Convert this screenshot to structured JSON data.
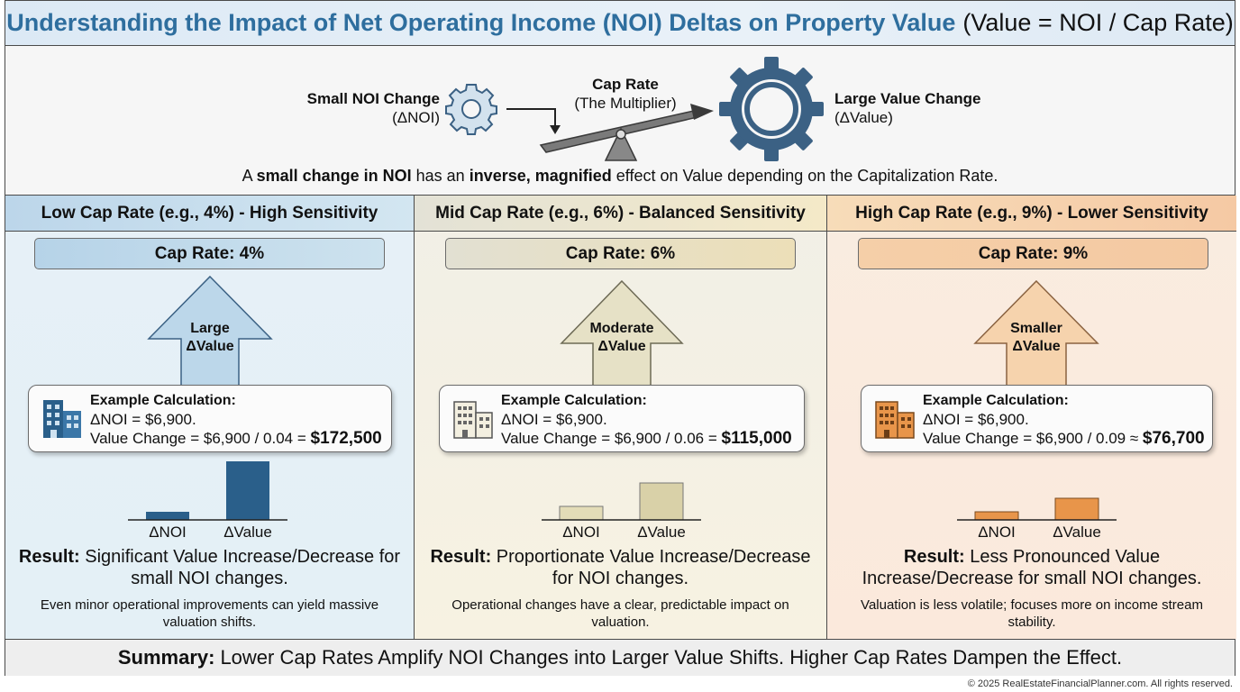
{
  "title": {
    "main": "Understanding the Impact of Net Operating Income (NOI) Deltas on Property Value",
    "formula": "(Value = NOI / Cap Rate)"
  },
  "concept": {
    "small_label_bold": "Small NOI Change",
    "small_label_sub": "(ΔNOI)",
    "cap_label_bold": "Cap Rate",
    "cap_label_sub": "(The Multiplier)",
    "large_label_bold": "Large Value Change",
    "large_label_sub": "(ΔValue)",
    "sentence_pre": "A ",
    "sentence_b1": "small change in NOI",
    "sentence_mid": " has an ",
    "sentence_b2": "inverse, magnified",
    "sentence_post": " effect on Value depending on the Capitalization Rate."
  },
  "columns": [
    {
      "header": "Low Cap Rate (e.g., 4%) - High Sensitivity",
      "cap_pill": "Cap Rate: 4%",
      "arrow_line1": "Large",
      "arrow_line2": "ΔValue",
      "calc_title": "Example Calculation:",
      "calc_noi": "ΔNOI = $6,900.",
      "calc_value_prefix": "Value Change = $6,900 / 0.04 = ",
      "calc_value_result": "$172,500",
      "bar_noi_label": "ΔNOI",
      "bar_value_label": "ΔValue",
      "result_bold": "Result:",
      "result_text": " Significant Value Increase/Decrease for small NOI changes.",
      "note": "Even minor operational improvements can yield massive valuation shifts.",
      "color": "#2a5f8a"
    },
    {
      "header": "Mid Cap Rate (e.g., 6%) - Balanced Sensitivity",
      "cap_pill": "Cap Rate: 6%",
      "arrow_line1": "Moderate",
      "arrow_line2": "ΔValue",
      "calc_title": "Example Calculation:",
      "calc_noi": "ΔNOI = $6,900.",
      "calc_value_prefix": "Value Change = $6,900 / 0.06 = ",
      "calc_value_result": "$115,000",
      "bar_noi_label": "ΔNOI",
      "bar_value_label": "ΔValue",
      "result_bold": "Result:",
      "result_text": " Proportionate Value Increase/Decrease for NOI changes.",
      "note": "Operational changes have a clear, predictable impact on valuation.",
      "color": "#d9d1a8"
    },
    {
      "header": "High Cap Rate (e.g., 9%) - Lower Sensitivity",
      "cap_pill": "Cap Rate: 9%",
      "arrow_line1": "Smaller",
      "arrow_line2": "ΔValue",
      "calc_title": "Example Calculation:",
      "calc_noi": "ΔNOI = $6,900.",
      "calc_value_prefix": "Value Change = $6,900 / 0.09 ≈ ",
      "calc_value_result": "$76,700",
      "bar_noi_label": "ΔNOI",
      "bar_value_label": "ΔValue",
      "result_bold": "Result:",
      "result_text": " Less Pronounced Value Increase/Decrease for small NOI changes.",
      "note": "Valuation is less volatile; focuses more on income stream stability.",
      "color": "#e8954a"
    }
  ],
  "summary": {
    "bold": "Summary:",
    "text": "Lower Cap Rates Amplify NOI Changes into Larger Value Shifts. Higher Cap Rates Dampen the Effect."
  },
  "copyright": "© 2025 RealEstateFinancialPlanner.com. All rights reserved.",
  "icons": [
    "small-gear-icon",
    "large-gear-icon",
    "seesaw-lever-icon",
    "building-icon"
  ]
}
